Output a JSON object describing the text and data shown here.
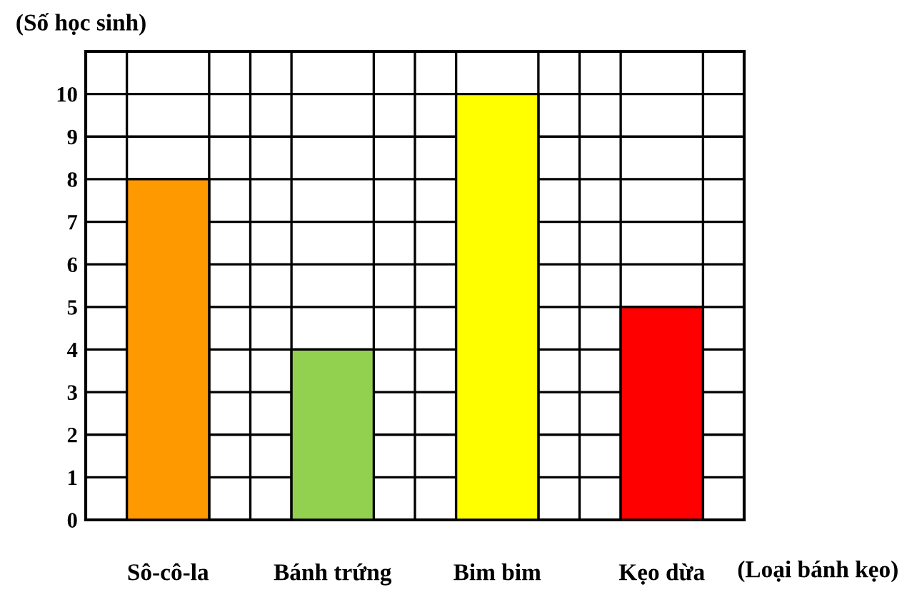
{
  "chart_data": {
    "type": "bar",
    "categories": [
      "Sô-cô-la",
      "Bánh trứng",
      "Bim bim",
      "Kẹo dừa"
    ],
    "values": [
      8,
      4,
      10,
      5
    ],
    "colors": [
      "#ff9900",
      "#92d050",
      "#ffff00",
      "#ff0000"
    ],
    "ylabel": "(Số học sinh)",
    "xlabel": "(Loại bánh kẹo)",
    "ylim": [
      0,
      11
    ],
    "yticks": [
      0,
      1,
      2,
      3,
      4,
      5,
      6,
      7,
      8,
      9,
      10,
      {
        "value": 11,
        "label": null
      }
    ],
    "grid": true
  }
}
